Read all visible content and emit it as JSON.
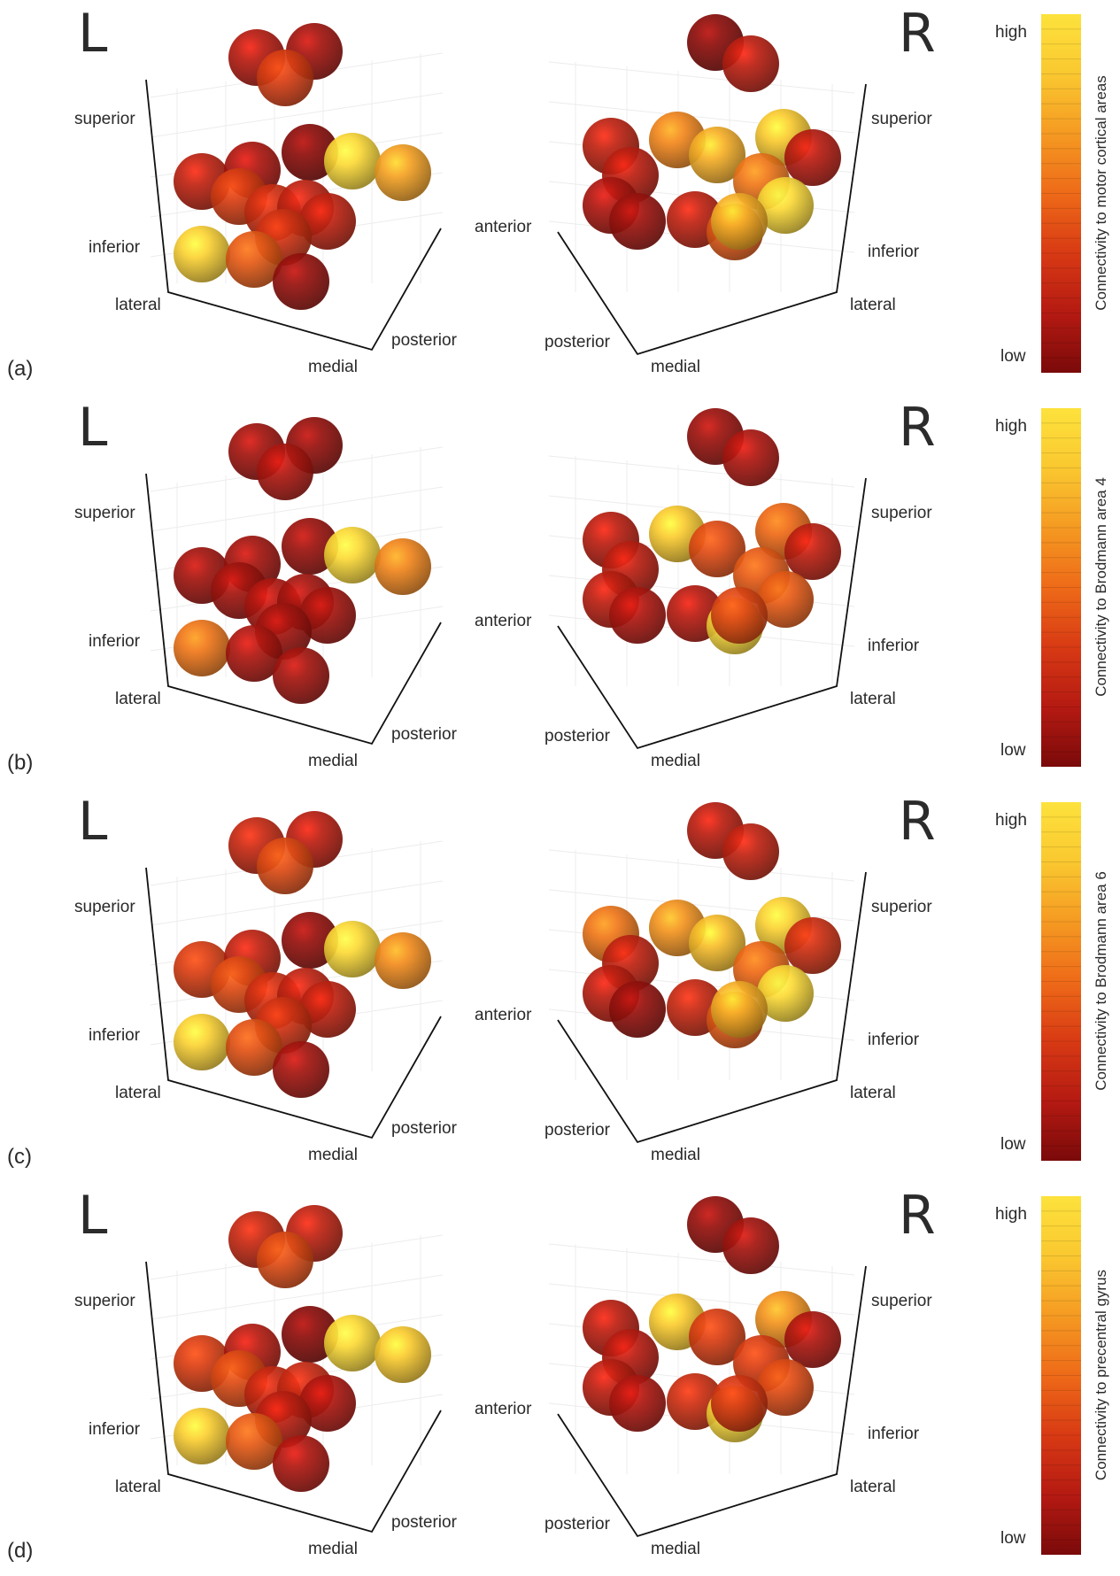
{
  "figure": {
    "hemisphere_left": "L",
    "hemisphere_right": "R",
    "axes_left": {
      "superior": "superior",
      "inferior": "inferior",
      "lateral": "lateral",
      "medial": "medial",
      "posterior": "posterior"
    },
    "axis_anterior": "anterior",
    "axes_right": {
      "superior": "superior",
      "inferior": "inferior",
      "lateral": "lateral",
      "medial": "medial",
      "posterior": "posterior"
    },
    "colorbar": {
      "high": "high",
      "low": "low",
      "colors": [
        "#7a0a0a",
        "#b51a12",
        "#d83a14",
        "#ee6a18",
        "#f59a22",
        "#fac830",
        "#fde23c"
      ]
    },
    "panels": [
      {
        "id": "a",
        "label": "(a)",
        "colorbar_title": "Connectivity to motor cortical areas",
        "left_levels": [
          0.18,
          0.12,
          0.35,
          0.22,
          0.15,
          0.05,
          0.95,
          0.7,
          0.35,
          0.28,
          0.22,
          0.22,
          0.3,
          0.9,
          0.45,
          0.08
        ],
        "right_levels": [
          0.05,
          0.2,
          0.22,
          0.6,
          0.75,
          0.85,
          0.18,
          0.2,
          0.55,
          0.95,
          0.15,
          0.1,
          0.22,
          0.45,
          0.75
        ]
      },
      {
        "id": "b",
        "label": "(b)",
        "colorbar_title": "Connectivity to Brodmann area 4",
        "left_levels": [
          0.12,
          0.08,
          0.15,
          0.12,
          0.12,
          0.1,
          0.95,
          0.6,
          0.12,
          0.15,
          0.12,
          0.12,
          0.12,
          0.55,
          0.15,
          0.12
        ],
        "right_levels": [
          0.1,
          0.15,
          0.2,
          0.85,
          0.4,
          0.5,
          0.2,
          0.2,
          0.45,
          0.45,
          0.2,
          0.15,
          0.18,
          0.95,
          0.38
        ]
      },
      {
        "id": "c",
        "label": "(c)",
        "colorbar_title": "Connectivity to Brodmann area 6",
        "left_levels": [
          0.25,
          0.2,
          0.4,
          0.35,
          0.22,
          0.08,
          0.95,
          0.62,
          0.4,
          0.28,
          0.22,
          0.22,
          0.3,
          0.9,
          0.42,
          0.12
        ],
        "right_levels": [
          0.2,
          0.22,
          0.55,
          0.65,
          0.8,
          0.9,
          0.28,
          0.22,
          0.5,
          0.95,
          0.2,
          0.08,
          0.25,
          0.45,
          0.75
        ]
      },
      {
        "id": "d",
        "label": "(d)",
        "colorbar_title": "Connectivity to precentral gyrus",
        "left_levels": [
          0.25,
          0.22,
          0.4,
          0.35,
          0.18,
          0.05,
          0.95,
          0.85,
          0.4,
          0.25,
          0.25,
          0.15,
          0.2,
          0.88,
          0.45,
          0.15
        ],
        "right_levels": [
          0.08,
          0.12,
          0.2,
          0.85,
          0.35,
          0.65,
          0.15,
          0.18,
          0.35,
          0.4,
          0.2,
          0.15,
          0.28,
          0.95,
          0.32
        ]
      }
    ]
  }
}
